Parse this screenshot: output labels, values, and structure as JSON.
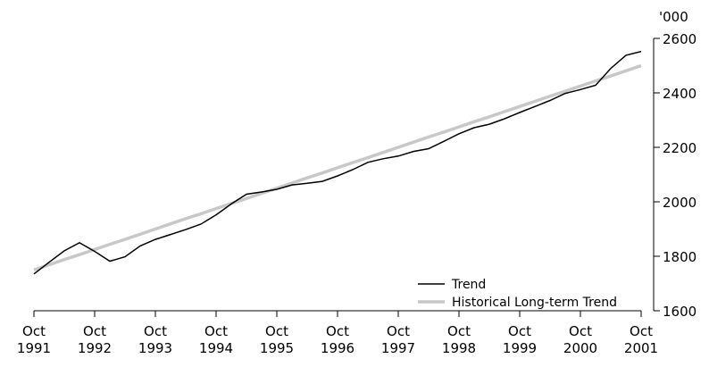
{
  "chart_data": {
    "type": "line",
    "y_unit_label": "'000",
    "x": [
      1991.75,
      1992.0,
      1992.25,
      1992.5,
      1992.75,
      1993.0,
      1993.25,
      1993.5,
      1993.75,
      1994.0,
      1994.25,
      1994.5,
      1994.75,
      1995.0,
      1995.25,
      1995.5,
      1995.75,
      1996.0,
      1996.25,
      1996.5,
      1996.75,
      1997.0,
      1997.25,
      1997.5,
      1997.75,
      1998.0,
      1998.25,
      1998.5,
      1998.75,
      1999.0,
      1999.25,
      1999.5,
      1999.75,
      2000.0,
      2000.25,
      2000.5,
      2000.75,
      2001.0,
      2001.25,
      2001.5,
      2001.75
    ],
    "series": [
      {
        "name": "Trend",
        "color": "#000000",
        "width": 1.5,
        "values": [
          1735,
          1778,
          1820,
          1850,
          1818,
          1782,
          1798,
          1838,
          1862,
          1880,
          1898,
          1918,
          1952,
          1992,
          2028,
          2036,
          2046,
          2062,
          2068,
          2075,
          2095,
          2118,
          2145,
          2158,
          2168,
          2185,
          2195,
          2222,
          2250,
          2272,
          2285,
          2305,
          2328,
          2350,
          2372,
          2398,
          2412,
          2428,
          2490,
          2538,
          2552
        ]
      },
      {
        "name": "Historical Long-term Trend",
        "color": "#c8c8c8",
        "width": 3.5,
        "values": [
          1750,
          1769,
          1788,
          1806,
          1825,
          1844,
          1862,
          1881,
          1900,
          1919,
          1938,
          1956,
          1975,
          1994,
          2012,
          2031,
          2050,
          2069,
          2088,
          2106,
          2125,
          2144,
          2162,
          2181,
          2200,
          2219,
          2238,
          2256,
          2275,
          2294,
          2312,
          2331,
          2350,
          2369,
          2388,
          2406,
          2425,
          2444,
          2462,
          2481,
          2500
        ]
      }
    ],
    "xlim": [
      1991.75,
      2001.75
    ],
    "xticks": [
      {
        "value": 1991.75,
        "label": "Oct 1991"
      },
      {
        "value": 1992.75,
        "label": "Oct 1992"
      },
      {
        "value": 1993.75,
        "label": "Oct 1993"
      },
      {
        "value": 1994.75,
        "label": "Oct 1994"
      },
      {
        "value": 1995.75,
        "label": "Oct 1995"
      },
      {
        "value": 1996.75,
        "label": "Oct 1996"
      },
      {
        "value": 1997.75,
        "label": "Oct 1997"
      },
      {
        "value": 1998.75,
        "label": "Oct 1998"
      },
      {
        "value": 1999.75,
        "label": "Oct 1999"
      },
      {
        "value": 2000.75,
        "label": "Oct 2000"
      },
      {
        "value": 2001.75,
        "label": "Oct 2001"
      }
    ],
    "ylim": [
      1600,
      2600
    ],
    "yticks": [
      1600,
      1800,
      2000,
      2200,
      2400,
      2600
    ],
    "legend": "lower right"
  }
}
